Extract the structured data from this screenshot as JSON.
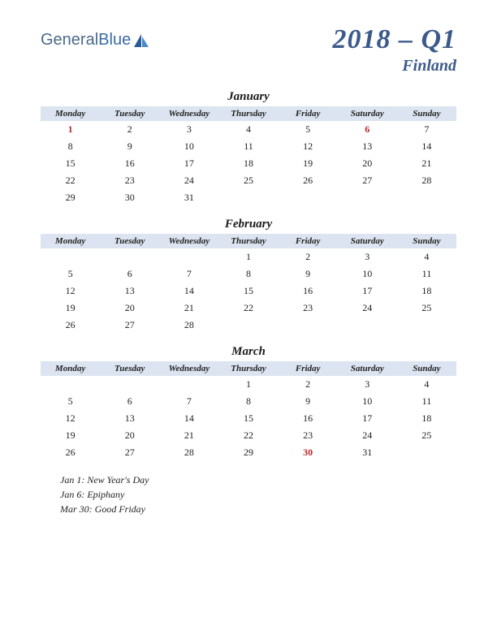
{
  "logo": {
    "text1": "General",
    "text2": "Blue"
  },
  "title": {
    "quarter": "2018 – Q1",
    "country": "Finland"
  },
  "weekdays": [
    "Monday",
    "Tuesday",
    "Wednesday",
    "Thursday",
    "Friday",
    "Saturday",
    "Sunday"
  ],
  "colors": {
    "header_bg": "#dbe4f0",
    "title_color": "#3b5a8a",
    "holiday_color": "#c0272d",
    "text_color": "#222222",
    "background": "#ffffff"
  },
  "typography": {
    "title_fontsize": 34,
    "country_fontsize": 20,
    "month_fontsize": 15,
    "weekday_fontsize": 11,
    "day_fontsize": 12,
    "holiday_list_fontsize": 12
  },
  "months": [
    {
      "name": "January",
      "start_weekday_index": 0,
      "days": 31,
      "holidays": [
        1,
        6
      ]
    },
    {
      "name": "February",
      "start_weekday_index": 3,
      "days": 28,
      "holidays": []
    },
    {
      "name": "March",
      "start_weekday_index": 3,
      "days": 31,
      "holidays": [
        30
      ]
    }
  ],
  "holiday_list": [
    "Jan 1: New Year's Day",
    "Jan 6: Epiphany",
    "Mar 30: Good Friday"
  ]
}
